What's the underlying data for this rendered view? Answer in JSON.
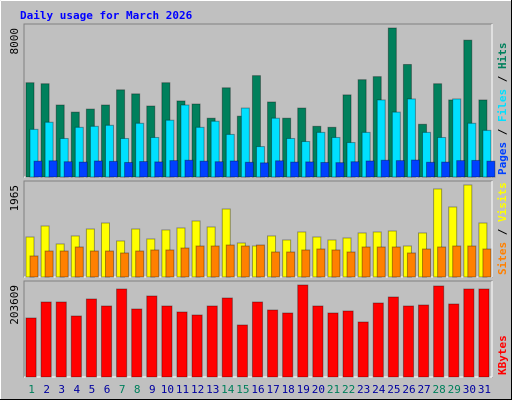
{
  "chart_data": [
    {
      "type": "bar",
      "title": "Daily usage for March 2026",
      "ylim": [
        0,
        8000
      ],
      "yticks": [
        8000
      ],
      "series": [
        {
          "name": "Hits",
          "color": "#00805c",
          "values": [
            5061,
            5007,
            3864,
            3483,
            3646,
            3864,
            4680,
            4463,
            3810,
            5061,
            4082,
            3918,
            3156,
            4789,
            3265,
            5442,
            4027,
            3156,
            3701,
            2721,
            2667,
            4408,
            5224,
            5388,
            8000,
            6041,
            2830,
            5007,
            4136,
            7347,
            4136
          ]
        },
        {
          "name": "Files",
          "color": "#00e0ff",
          "values": [
            2558,
            2939,
            2068,
            2667,
            2721,
            2776,
            2068,
            2884,
            2122,
            3048,
            3864,
            2667,
            2993,
            2286,
            3701,
            1633,
            3156,
            2068,
            1905,
            2395,
            2122,
            1850,
            2395,
            4136,
            3483,
            4190,
            2395,
            2122,
            4190,
            2884,
            2503
          ]
        },
        {
          "name": "Pages",
          "color": "#0040ff",
          "values": [
            850,
            870,
            820,
            800,
            860,
            840,
            780,
            830,
            810,
            880,
            900,
            850,
            820,
            860,
            790,
            760,
            870,
            800,
            810,
            780,
            770,
            820,
            860,
            900,
            880,
            910,
            790,
            800,
            880,
            890,
            850
          ]
        }
      ]
    },
    {
      "type": "bar",
      "ylim": [
        0,
        1965
      ],
      "yticks": [
        1965
      ],
      "series": [
        {
          "name": "Visits",
          "color": "#ffff00",
          "values": [
            854,
            1089,
            705,
            876,
            1025,
            1153,
            769,
            1025,
            812,
            1004,
            1047,
            1196,
            1068,
            1452,
            726,
            662,
            876,
            790,
            961,
            854,
            790,
            833,
            940,
            961,
            982,
            662,
            940,
            1880,
            1495,
            1965,
            1153
          ]
        },
        {
          "name": "Sites",
          "color": "#ff8000",
          "values": [
            449,
            555,
            555,
            641,
            555,
            555,
            513,
            555,
            577,
            577,
            619,
            662,
            662,
            683,
            662,
            683,
            534,
            534,
            577,
            598,
            577,
            534,
            641,
            641,
            641,
            513,
            598,
            641,
            662,
            662,
            598
          ]
        }
      ]
    },
    {
      "type": "bar",
      "ylim": [
        0,
        203609
      ],
      "yticks": [
        203609
      ],
      "categories": [
        "1",
        "2",
        "3",
        "4",
        "5",
        "6",
        "7",
        "8",
        "9",
        "10",
        "11",
        "12",
        "13",
        "14",
        "15",
        "16",
        "17",
        "18",
        "19",
        "20",
        "21",
        "22",
        "23",
        "24",
        "25",
        "26",
        "27",
        "28",
        "29",
        "30",
        "31"
      ],
      "category_colors": [
        "#00805c",
        "#0000a0",
        "#0000a0",
        "#0000a0",
        "#0000a0",
        "#0000a0",
        "#00805c",
        "#00805c",
        "#0000a0",
        "#0000a0",
        "#0000a0",
        "#0000a0",
        "#0000a0",
        "#00805c",
        "#00805c",
        "#0000a0",
        "#0000a0",
        "#0000a0",
        "#0000a0",
        "#0000a0",
        "#00805c",
        "#00805c",
        "#0000a0",
        "#0000a0",
        "#0000a0",
        "#0000a0",
        "#0000a0",
        "#00805c",
        "#00805c",
        "#0000a0",
        "#0000a0"
      ],
      "series": [
        {
          "name": "KBytes",
          "color": "#ff0000",
          "values": [
            130576,
            165986,
            165986,
            135002,
            172625,
            157134,
            194756,
            150494,
            179265,
            157134,
            143855,
            137215,
            157134,
            174838,
            115085,
            165986,
            148281,
            141641,
            203609,
            157134,
            141641,
            146068,
            121724,
            163773,
            177052,
            157134,
            159347,
            201395,
            161560,
            194756,
            194756
          ]
        }
      ]
    }
  ]
}
